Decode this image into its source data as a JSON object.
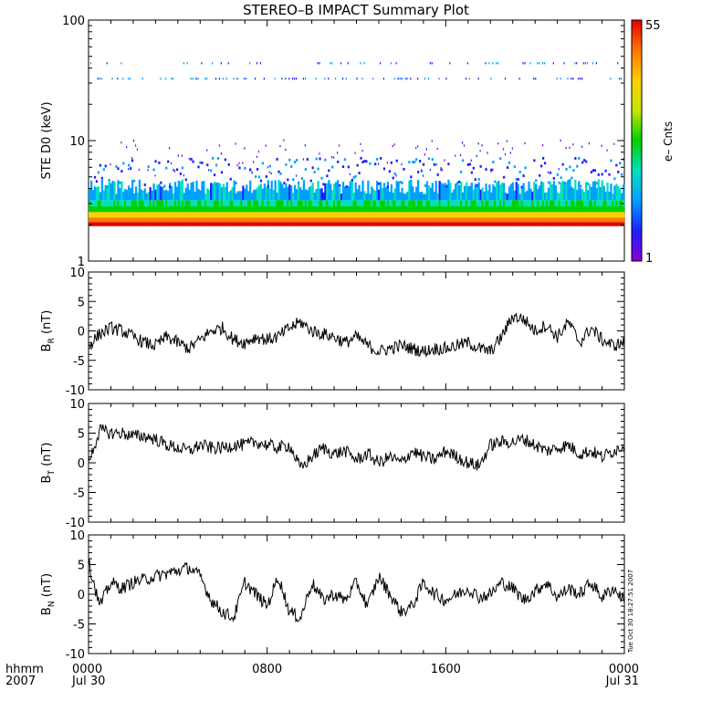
{
  "title": "STEREO–B IMPACT Summary Plot",
  "timestamp": "Tue Oct 30 18:27:51 2007",
  "time_axis": {
    "row1_label": "hhmm",
    "row2_label": "2007",
    "ticks": [
      {
        "hour": 0,
        "label": "0000",
        "date": "Jul 30"
      },
      {
        "hour": 8,
        "label": "0800",
        "date": ""
      },
      {
        "hour": 16,
        "label": "1600",
        "date": ""
      },
      {
        "hour": 24,
        "label": "0000",
        "date": "Jul 31"
      }
    ]
  },
  "colorbar": {
    "label": "e– Cnts",
    "min_label": "1",
    "max_label": "55",
    "colors": [
      "#8a00d4",
      "#1e1eff",
      "#00a0ff",
      "#00e0c0",
      "#00d000",
      "#c8e600",
      "#ffd000",
      "#ff7800",
      "#e00000"
    ]
  },
  "chart_data": [
    {
      "type": "heatmap",
      "ylabel": "STE D0 (keV)",
      "yscale": "log",
      "ylim": [
        1,
        100
      ],
      "yticks": [
        1,
        10,
        100
      ],
      "ytick_labels": [
        "1",
        "10",
        "100"
      ],
      "xlim_hours": [
        0,
        24
      ],
      "value_range": [
        1,
        55
      ],
      "description_bands": [
        {
          "energy_keV": 2.0,
          "typical_counts": 50
        },
        {
          "energy_keV": 2.3,
          "typical_counts": 30
        },
        {
          "energy_keV": 2.7,
          "typical_counts": 15
        },
        {
          "energy_keV": 3.3,
          "typical_counts": 6
        },
        {
          "energy_keV": 4.5,
          "typical_counts": 2
        },
        {
          "energy_keV": 35,
          "typical_counts": 3
        }
      ]
    },
    {
      "type": "line",
      "ylabel": "B",
      "ylabel_sub": "R",
      "ylabel_unit": "(nT)",
      "ylim": [
        -10,
        10
      ],
      "yticks": [
        -10,
        -5,
        0,
        5,
        10
      ],
      "xlim_hours": [
        0,
        24
      ],
      "series": [
        {
          "x_hours": [
            0,
            0.5,
            1,
            1.5,
            2,
            2.5,
            3,
            3.5,
            4,
            4.5,
            5,
            5.5,
            6,
            6.5,
            7,
            7.5,
            8,
            8.5,
            9,
            9.5,
            10,
            10.5,
            11,
            11.5,
            12,
            12.5,
            13,
            13.5,
            14,
            14.5,
            15,
            15.5,
            16,
            16.5,
            17,
            17.5,
            18,
            18.5,
            19,
            19.5,
            20,
            20.5,
            21,
            21.5,
            22,
            22.5,
            23,
            23.5,
            24
          ],
          "values": [
            -2.5,
            -0.5,
            0.5,
            0,
            -1,
            -2,
            -2.5,
            -1,
            -2,
            -3,
            -1.5,
            0,
            0.5,
            -1.5,
            -2,
            -1,
            -1.5,
            -1,
            0.5,
            1.5,
            0,
            -0.5,
            -1,
            -2,
            -1,
            -2.5,
            -3.5,
            -3,
            -2.5,
            -3,
            -3.5,
            -3,
            -3,
            -2.5,
            -2,
            -3,
            -3.5,
            -1,
            2.5,
            2,
            0,
            1,
            -1,
            1.5,
            -2,
            0.5,
            -1.5,
            -2.5,
            -2
          ]
        }
      ]
    },
    {
      "type": "line",
      "ylabel": "B",
      "ylabel_sub": "T",
      "ylabel_unit": "(nT)",
      "ylim": [
        -10,
        10
      ],
      "yticks": [
        -10,
        -5,
        0,
        5,
        10
      ],
      "xlim_hours": [
        0,
        24
      ],
      "series": [
        {
          "x_hours": [
            0,
            0.5,
            1,
            1.5,
            2,
            2.5,
            3,
            3.5,
            4,
            4.5,
            5,
            5.5,
            6,
            6.5,
            7,
            7.5,
            8,
            8.5,
            9,
            9.5,
            10,
            10.5,
            11,
            11.5,
            12,
            12.5,
            13,
            13.5,
            14,
            14.5,
            15,
            15.5,
            16,
            16.5,
            17,
            17.5,
            18,
            18.5,
            19,
            19.5,
            20,
            20.5,
            21,
            21.5,
            22,
            22.5,
            23,
            23.5,
            24
          ],
          "values": [
            0,
            5.5,
            5,
            5,
            4.5,
            4.5,
            4,
            3,
            2.5,
            2,
            3,
            2.5,
            2.5,
            3,
            3,
            3.5,
            3,
            2.5,
            3,
            -1,
            1,
            2.5,
            1.5,
            2,
            0.5,
            1.5,
            0,
            1,
            0,
            2,
            1,
            0.5,
            2,
            1,
            0,
            -0.5,
            3,
            3.5,
            3.5,
            4,
            3,
            2,
            2.5,
            3,
            1.5,
            2,
            1,
            2,
            3
          ]
        }
      ]
    },
    {
      "type": "line",
      "ylabel": "B",
      "ylabel_sub": "N",
      "ylabel_unit": "(nT)",
      "ylim": [
        -10,
        10
      ],
      "yticks": [
        -10,
        -5,
        0,
        5,
        10
      ],
      "xlim_hours": [
        0,
        24
      ],
      "series": [
        {
          "x_hours": [
            0,
            0.5,
            1,
            1.5,
            2,
            2.5,
            3,
            3.5,
            4,
            4.5,
            5,
            5.5,
            6,
            6.5,
            7,
            7.5,
            8,
            8.5,
            9,
            9.5,
            10,
            10.5,
            11,
            11.5,
            12,
            12.5,
            13,
            13.5,
            14,
            14.5,
            15,
            15.5,
            16,
            16.5,
            17,
            17.5,
            18,
            18.5,
            19,
            19.5,
            20,
            20.5,
            21,
            21.5,
            22,
            22.5,
            23,
            23.5,
            24
          ],
          "values": [
            5.5,
            -2,
            2,
            1,
            2,
            2.5,
            3,
            3.5,
            4,
            4.5,
            3,
            -1,
            -3,
            -4,
            2,
            0,
            -2,
            3,
            -3,
            -4,
            2,
            -1,
            0,
            -1,
            2,
            -2,
            3,
            0,
            -3,
            -2,
            2,
            0,
            -1,
            0,
            1,
            -0.5,
            0,
            2,
            1,
            -1,
            0.5,
            2,
            -0.5,
            1,
            0,
            2,
            -0.5,
            1,
            -1
          ]
        }
      ]
    }
  ]
}
